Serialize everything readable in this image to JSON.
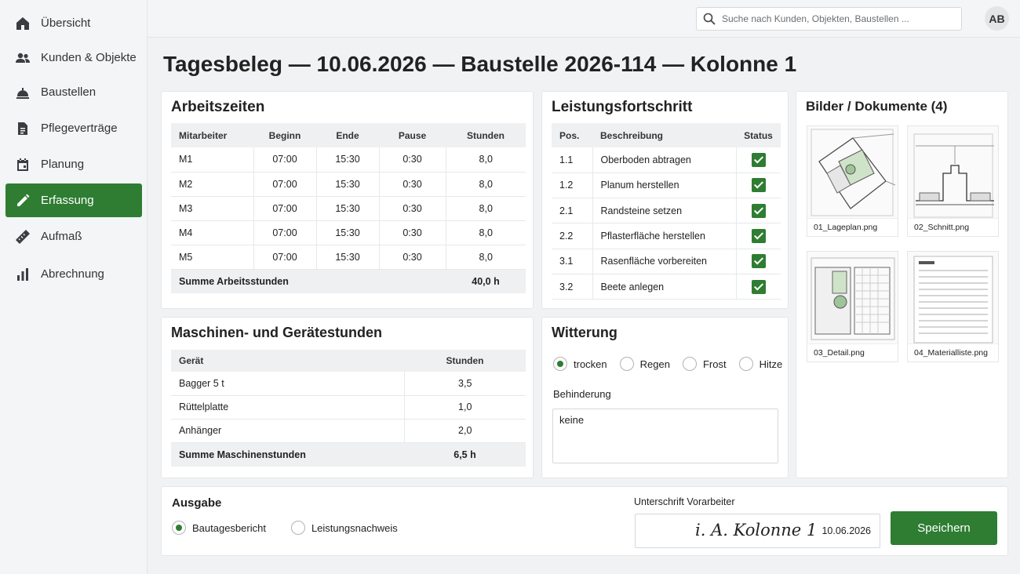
{
  "nav": [
    {
      "label": "Übersicht",
      "icon": "home-icon"
    },
    {
      "label": "Kunden & Objekte",
      "icon": "people-icon"
    },
    {
      "label": "Baustellen",
      "icon": "construction-icon"
    },
    {
      "label": "Pflegeverträge",
      "icon": "document-icon"
    },
    {
      "label": "Planung",
      "icon": "calendar-icon"
    },
    {
      "label": "Erfassung",
      "icon": "pencil-icon",
      "active": true
    },
    {
      "label": "Aufmaß",
      "icon": "ruler-icon"
    },
    {
      "label": "Abrechnung",
      "icon": "bar-chart-icon"
    }
  ],
  "search": {
    "placeholder": "Suche nach Kunden, Objekten, Baustellen ..."
  },
  "user": {
    "initials": "AB"
  },
  "page_title": "Tagesbeleg — 10.06.2026 — Baustelle 2026-114 — Kolonne 1",
  "arbeitszeiten": {
    "title": "Arbeitszeiten",
    "columns": [
      "Mitarbeiter",
      "Beginn",
      "Ende",
      "Pause",
      "Stunden"
    ],
    "rows": [
      [
        "M1",
        "07:00",
        "15:30",
        "0:30",
        "8,0"
      ],
      [
        "M2",
        "07:00",
        "15:30",
        "0:30",
        "8,0"
      ],
      [
        "M3",
        "07:00",
        "15:30",
        "0:30",
        "8,0"
      ],
      [
        "M4",
        "07:00",
        "15:30",
        "0:30",
        "8,0"
      ],
      [
        "M5",
        "07:00",
        "15:30",
        "0:30",
        "8,0"
      ]
    ],
    "sum_label": "Summe Arbeitsstunden",
    "sum_value": "40,0 h"
  },
  "leistung": {
    "title": "Leistungsfortschritt",
    "columns": [
      "Pos.",
      "Beschreibung",
      "Status"
    ],
    "rows": [
      {
        "pos": "1.1",
        "desc": "Oberboden abtragen",
        "done": true
      },
      {
        "pos": "1.2",
        "desc": "Planum herstellen",
        "done": true
      },
      {
        "pos": "2.1",
        "desc": "Randsteine setzen",
        "done": true
      },
      {
        "pos": "2.2",
        "desc": "Pflasterfläche herstellen",
        "done": true
      },
      {
        "pos": "3.1",
        "desc": "Rasenfläche vorbereiten",
        "done": true
      },
      {
        "pos": "3.2",
        "desc": "Beete anlegen",
        "done": true
      }
    ]
  },
  "bilder": {
    "title": "Bilder / Dokumente (4)",
    "items": [
      "01_Lageplan.png",
      "02_Schnitt.png",
      "03_Detail.png",
      "04_Materialliste.png"
    ]
  },
  "maschinen": {
    "title": "Maschinen- und Gerätestunden",
    "columns": [
      "Gerät",
      "Stunden"
    ],
    "rows": [
      [
        "Bagger 5 t",
        "3,5"
      ],
      [
        "Rüttelplatte",
        "1,0"
      ],
      [
        "Anhänger",
        "2,0"
      ]
    ],
    "sum_label": "Summe Maschinenstunden",
    "sum_value": "6,5 h"
  },
  "witterung": {
    "title": "Witterung",
    "options": [
      "trocken",
      "Regen",
      "Frost",
      "Hitze"
    ],
    "selected": "trocken",
    "behinderung_label": "Behinderung",
    "behinderung_value": "keine"
  },
  "ausgabe": {
    "title": "Ausgabe",
    "options": [
      "Bautagesbericht",
      "Leistungsnachweis"
    ],
    "selected": "Bautagesbericht"
  },
  "signature": {
    "label": "Unterschrift Vorarbeiter",
    "text": "i. A. Kolonne 1",
    "date": "10.06.2026"
  },
  "save_label": "Speichern",
  "colors": {
    "accent": "#2e7d32",
    "header_bg": "#eef0f1"
  }
}
